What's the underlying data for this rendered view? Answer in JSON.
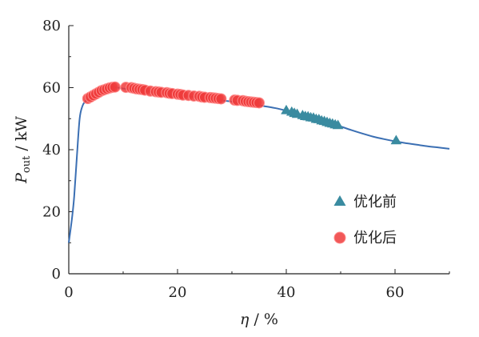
{
  "colors": {
    "curve": "#3b6fb3",
    "before": "#3a8ba0",
    "after_fill": "#ee3b3b",
    "after_stroke": "#ff8a8a",
    "axis": "#222222"
  },
  "chart_data": {
    "type": "scatter",
    "title": "",
    "xlabel_symbol": "η",
    "xlabel_unit": " / %",
    "ylabel_symbol": "P",
    "ylabel_sub": "out",
    "ylabel_unit": " / kW",
    "xlim": [
      0,
      70
    ],
    "ylim": [
      0,
      80
    ],
    "xticks": [
      0,
      20,
      40,
      60
    ],
    "yticks": [
      0,
      20,
      40,
      60,
      80
    ],
    "grid": false,
    "legend_position": "right",
    "curve": {
      "x": [
        0,
        0.6,
        1.0,
        1.5,
        2.0,
        2.5,
        3.0,
        4,
        5,
        6,
        7,
        8,
        9,
        10,
        12,
        14,
        16,
        18,
        20,
        22,
        24,
        26,
        28,
        30,
        32,
        34,
        36,
        38,
        40,
        42,
        44,
        46,
        48,
        50,
        52,
        54,
        56,
        58,
        60,
        62,
        64,
        66,
        68,
        70
      ],
      "y": [
        10,
        18,
        25,
        38,
        50,
        54,
        55.5,
        57,
        58.4,
        59.3,
        59.9,
        60.1,
        60.0,
        59.7,
        59.3,
        58.9,
        58.4,
        58.0,
        57.6,
        57.2,
        56.8,
        56.4,
        55.9,
        55.5,
        55.0,
        54.5,
        54.0,
        53.4,
        52.6,
        51.7,
        50.8,
        49.8,
        48.7,
        47.5,
        46.3,
        45.2,
        44.2,
        43.4,
        42.7,
        42.1,
        41.6,
        41.1,
        40.7,
        40.3
      ]
    },
    "series": [
      {
        "name": "优化前",
        "marker": "triangle",
        "x": [
          40,
          41,
          41.5,
          42,
          43,
          43.5,
          44,
          44.5,
          45,
          45.5,
          46,
          46.5,
          47,
          47.5,
          48,
          48.5,
          49,
          49.5,
          60.2
        ],
        "y": [
          52.8,
          52.3,
          51.9,
          51.6,
          51.2,
          50.9,
          50.8,
          50.5,
          50.4,
          50.0,
          49.9,
          49.5,
          49.3,
          49.0,
          48.7,
          48.5,
          48.2,
          48.0,
          43.1
        ]
      },
      {
        "name": "优化后",
        "marker": "circle",
        "x": [
          3.5,
          4.0,
          4.5,
          5.0,
          5.5,
          6.0,
          6.5,
          7.0,
          7.5,
          8.0,
          8.5,
          10.5,
          11.5,
          12.0,
          12.5,
          13.0,
          13.5,
          14.0,
          15.0,
          16.0,
          16.5,
          17.0,
          18.0,
          18.5,
          19.0,
          20.0,
          20.5,
          21.0,
          22.0,
          23.0,
          24.0,
          24.5,
          25.0,
          26.0,
          26.5,
          27.0,
          27.5,
          28.0,
          30.5,
          31.0,
          32.0,
          32.5,
          33.0,
          33.5,
          34.0,
          34.5,
          35.0
        ],
        "y": [
          56.5,
          57.0,
          57.5,
          58.0,
          58.5,
          59.0,
          59.3,
          59.6,
          59.9,
          60.1,
          60.2,
          60.1,
          60.0,
          59.8,
          59.6,
          59.5,
          59.4,
          59.2,
          58.9,
          58.7,
          58.6,
          58.5,
          58.4,
          58.2,
          58.1,
          57.9,
          57.8,
          57.6,
          57.5,
          57.3,
          57.2,
          57.0,
          56.9,
          56.8,
          56.7,
          56.6,
          56.5,
          56.4,
          56.0,
          55.9,
          55.8,
          55.6,
          55.5,
          55.4,
          55.3,
          55.2,
          55.1
        ]
      }
    ]
  }
}
